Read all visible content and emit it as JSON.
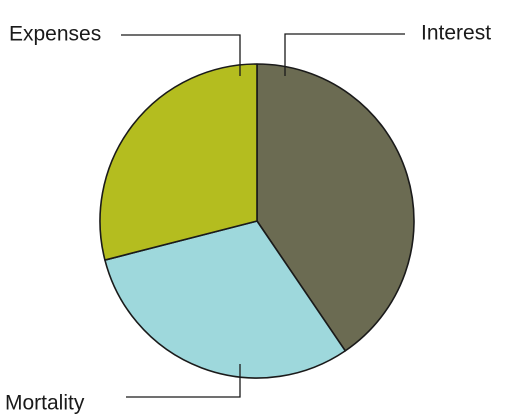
{
  "chart_data": {
    "type": "pie",
    "title": "",
    "slices": [
      {
        "label": "Interest",
        "value": 40.5,
        "color": "#6b6b52"
      },
      {
        "label": "Mortality",
        "value": 30.5,
        "color": "#9ed8dc"
      },
      {
        "label": "Expenses",
        "value": 29.0,
        "color": "#b4bd1f"
      }
    ],
    "legend": "none",
    "start_angle": "12 o'clock",
    "direction": "clockwise"
  }
}
